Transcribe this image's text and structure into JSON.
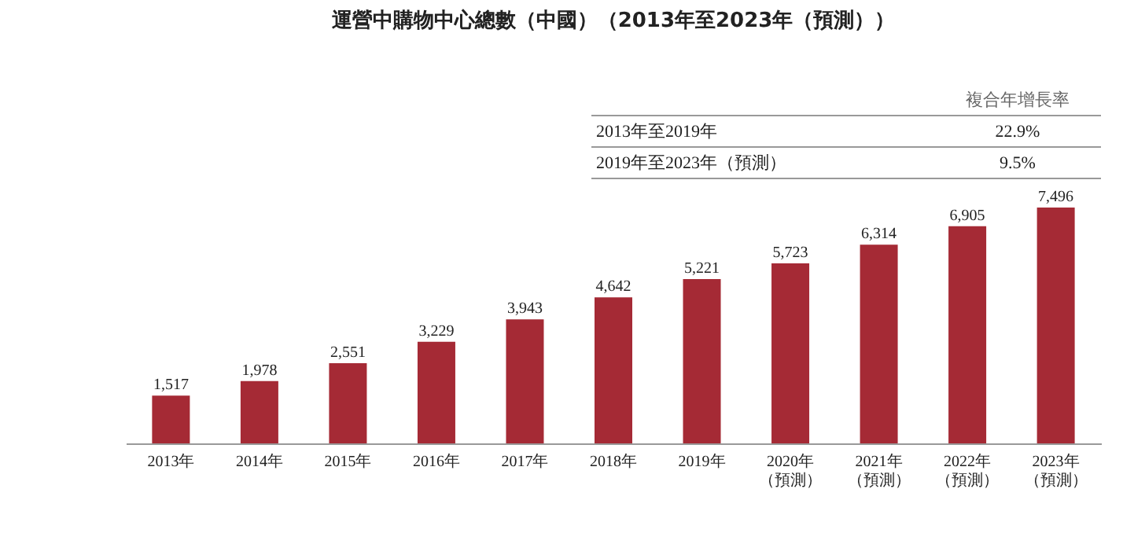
{
  "chart_data": {
    "type": "bar",
    "title": "運營中購物中心總數（中國）（2013年至2023年（預測））",
    "categories": [
      "2013年",
      "2014年",
      "2015年",
      "2016年",
      "2017年",
      "2018年",
      "2019年",
      "2020年（預測）",
      "2021年（預測）",
      "2022年（預測）",
      "2023年（預測）"
    ],
    "values": [
      1517,
      1978,
      2551,
      3229,
      3943,
      4642,
      5221,
      5723,
      6314,
      6905,
      7496
    ],
    "value_labels": [
      "1,517",
      "1,978",
      "2,551",
      "3,229",
      "3,943",
      "4,642",
      "5,221",
      "5,723",
      "6,314",
      "6,905",
      "7,496"
    ],
    "color": "#a52a35",
    "annotations": [
      "複合年增長率",
      "2013年至2019年",
      "22.9%",
      "2019年至2023年（預測）",
      "9.5%"
    ]
  }
}
